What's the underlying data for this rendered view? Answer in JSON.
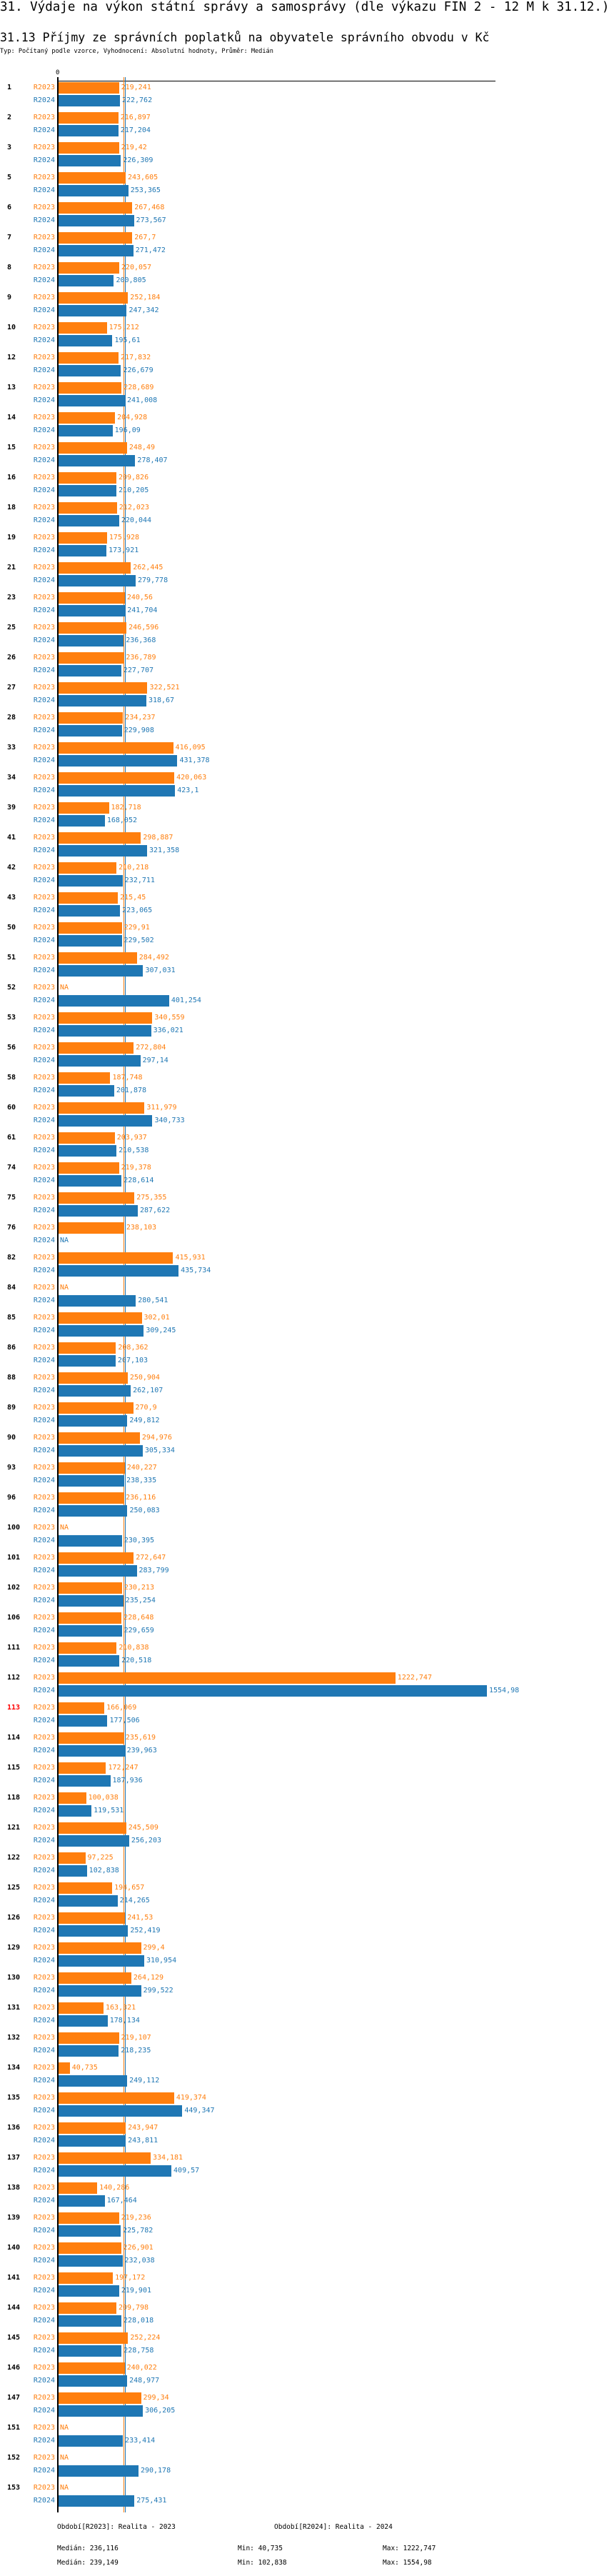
{
  "header": {
    "title": "31. Výdaje na výkon státní správy a samosprávy (dle výkazu FIN 2 - 12 M k 31.12.)",
    "subtitle": "31.13 Příjmy ze správních poplatků na obyvatele správního obvodu v Kč",
    "typ": "Typ: Počítaný podle vzorce, Vyhodnocení: Absolutní hodnoty, Průměr: Medián"
  },
  "chart_data": {
    "type": "bar",
    "orientation": "horizontal",
    "axis_zero_label": "0",
    "na_label": "NA",
    "highlight_category": "113",
    "highlight_color": "#ff0000",
    "series": [
      {
        "name": "R2023",
        "color": "#ff7f0e",
        "legend": "Období[R2023]: Realita - 2023",
        "median": 236.116,
        "median_label": "Medián: 236,116",
        "min_label": "Min: 40,735",
        "max_label": "Max: 1222,747"
      },
      {
        "name": "R2024",
        "color": "#1f77b4",
        "legend": "Období[R2024]: Realita - 2024",
        "median": 239.149,
        "median_label": "Medián: 239,149",
        "min_label": "Min: 102,838",
        "max_label": "Max: 1554,98"
      }
    ],
    "rows": [
      [
        "1",
        219.241,
        222.762
      ],
      [
        "2",
        216.897,
        217.204
      ],
      [
        "3",
        219.42,
        226.309
      ],
      [
        "5",
        243.605,
        253.365
      ],
      [
        "6",
        267.468,
        273.567
      ],
      [
        "7",
        267.7,
        271.472
      ],
      [
        "8",
        220.057,
        200.805
      ],
      [
        "9",
        252.184,
        247.342
      ],
      [
        "10",
        175.212,
        195.61
      ],
      [
        "12",
        217.832,
        226.679
      ],
      [
        "13",
        228.689,
        241.008
      ],
      [
        "14",
        204.928,
        196.09
      ],
      [
        "15",
        248.49,
        278.407
      ],
      [
        "16",
        209.826,
        210.205
      ],
      [
        "18",
        212.023,
        220.044
      ],
      [
        "19",
        175.928,
        173.921
      ],
      [
        "21",
        262.445,
        279.778
      ],
      [
        "23",
        240.56,
        241.704
      ],
      [
        "25",
        246.596,
        236.368
      ],
      [
        "26",
        236.789,
        227.707
      ],
      [
        "27",
        322.521,
        318.67
      ],
      [
        "28",
        234.237,
        229.908
      ],
      [
        "33",
        416.095,
        431.378
      ],
      [
        "34",
        420.063,
        423.1
      ],
      [
        "39",
        182.718,
        168.052
      ],
      [
        "41",
        298.887,
        321.358
      ],
      [
        "42",
        210.218,
        232.711
      ],
      [
        "43",
        215.45,
        223.065
      ],
      [
        "50",
        229.91,
        229.502
      ],
      [
        "51",
        284.492,
        307.031
      ],
      [
        "52",
        null,
        401.254
      ],
      [
        "53",
        340.559,
        336.021
      ],
      [
        "56",
        272.804,
        297.14
      ],
      [
        "58",
        187.748,
        201.878
      ],
      [
        "60",
        311.979,
        340.733
      ],
      [
        "61",
        203.937,
        210.538
      ],
      [
        "74",
        219.378,
        228.614
      ],
      [
        "75",
        275.355,
        287.622
      ],
      [
        "76",
        238.103,
        null
      ],
      [
        "82",
        415.931,
        435.734
      ],
      [
        "84",
        null,
        280.541
      ],
      [
        "85",
        302.01,
        309.245
      ],
      [
        "86",
        208.362,
        207.103
      ],
      [
        "88",
        250.904,
        262.107
      ],
      [
        "89",
        270.9,
        249.812
      ],
      [
        "90",
        294.976,
        305.334
      ],
      [
        "93",
        240.227,
        238.335
      ],
      [
        "96",
        236.116,
        250.083
      ],
      [
        "100",
        null,
        230.395
      ],
      [
        "101",
        272.647,
        283.799
      ],
      [
        "102",
        230.213,
        235.254
      ],
      [
        "106",
        228.648,
        229.659
      ],
      [
        "111",
        210.838,
        220.518
      ],
      [
        "112",
        1222.747,
        1554.98
      ],
      [
        "113",
        166.069,
        177.506
      ],
      [
        "114",
        235.619,
        239.963
      ],
      [
        "115",
        172.247,
        187.936
      ],
      [
        "118",
        100.038,
        119.531
      ],
      [
        "121",
        245.509,
        256.203
      ],
      [
        "122",
        97.225,
        102.838
      ],
      [
        "125",
        194.657,
        214.265
      ],
      [
        "126",
        241.53,
        252.419
      ],
      [
        "129",
        299.4,
        310.954
      ],
      [
        "130",
        264.129,
        299.522
      ],
      [
        "131",
        163.321,
        178.134
      ],
      [
        "132",
        219.107,
        218.235
      ],
      [
        "134",
        40.735,
        249.112
      ],
      [
        "135",
        419.374,
        449.347
      ],
      [
        "136",
        243.947,
        243.811
      ],
      [
        "137",
        334.181,
        409.57
      ],
      [
        "138",
        140.286,
        167.464
      ],
      [
        "139",
        219.236,
        225.782
      ],
      [
        "140",
        226.901,
        232.038
      ],
      [
        "141",
        197.172,
        219.901
      ],
      [
        "144",
        209.798,
        228.018
      ],
      [
        "145",
        252.224,
        228.758
      ],
      [
        "146",
        240.022,
        248.977
      ],
      [
        "147",
        299.34,
        306.205
      ],
      [
        "151",
        null,
        233.414
      ],
      [
        "152",
        null,
        290.178
      ],
      [
        "153",
        null,
        275.431
      ]
    ]
  }
}
